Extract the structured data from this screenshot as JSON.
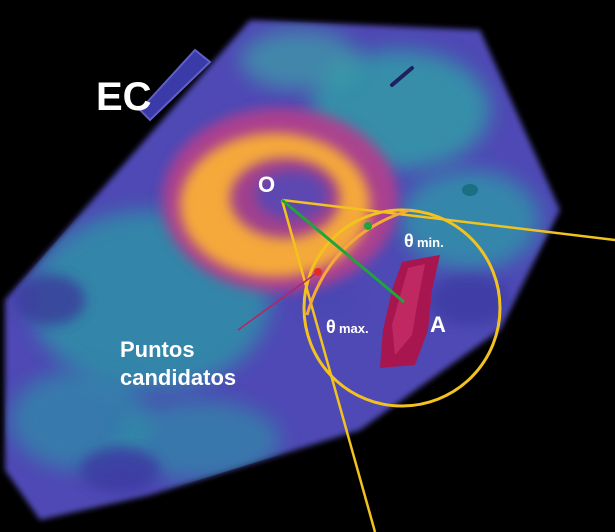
{
  "labels": {
    "ec": "EC",
    "origin": "O",
    "theta_min_symbol": "θ",
    "theta_min_sub": "min.",
    "theta_max_symbol": "θ",
    "theta_max_sub": "max.",
    "point_a": "A",
    "candidates_line1": "Puntos",
    "candidates_line2": "candidatos"
  },
  "colors": {
    "background": "#000000",
    "tissue_outer": "#4d46b8",
    "tissue_mid": "#2fa2a8",
    "ring_orange": "#f5a93a",
    "ring_magenta": "#b23f8c",
    "yellow_lines": "#f2c21e",
    "green_line": "#1fa53a",
    "vessel": "#a0154f",
    "red_points": "#e52a2a",
    "pointer_line": "#b8245e"
  }
}
